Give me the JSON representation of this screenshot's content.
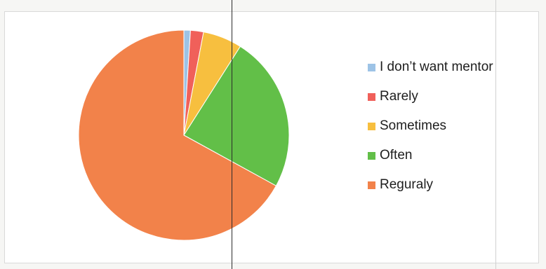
{
  "chart_data": {
    "type": "pie",
    "title": "",
    "legend_position": "right",
    "slices": [
      {
        "label": "I don’t want mentor",
        "value": 1,
        "color": "#9dc3e6"
      },
      {
        "label": "Rarely",
        "value": 2,
        "color": "#f0605a"
      },
      {
        "label": "Sometimes",
        "value": 6,
        "color": "#f7bf3f"
      },
      {
        "label": "Often",
        "value": 24,
        "color": "#62bf48"
      },
      {
        "label": "Reguraly",
        "value": 67,
        "color": "#f2824a"
      }
    ]
  }
}
